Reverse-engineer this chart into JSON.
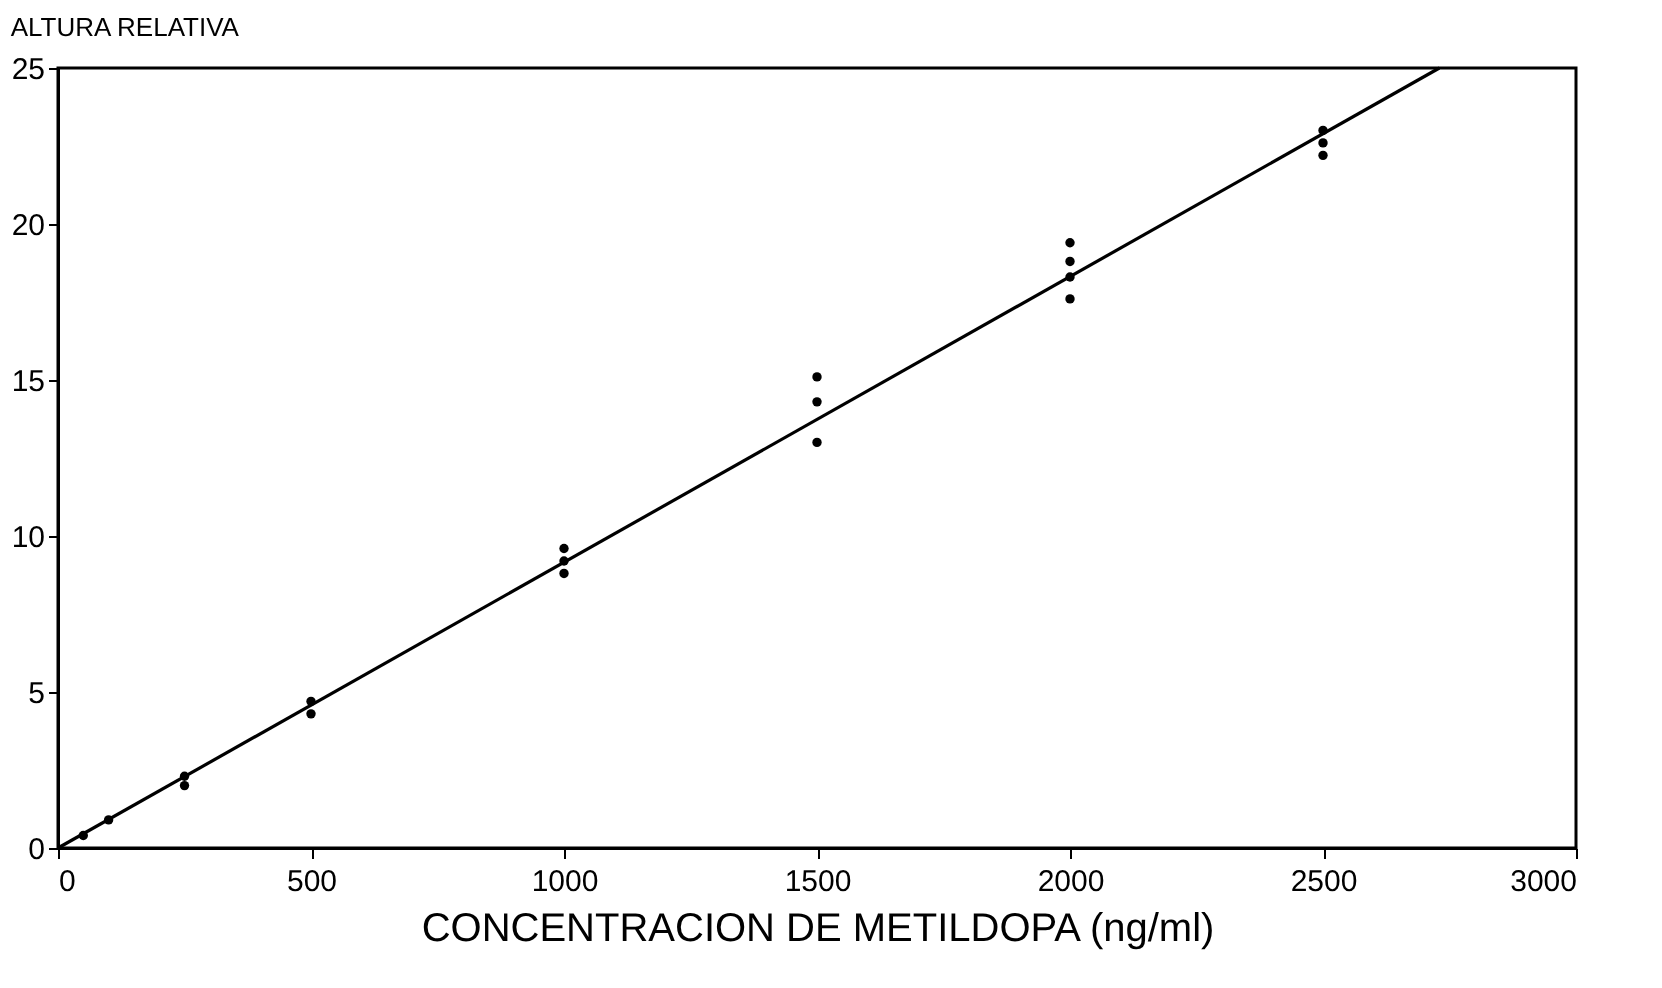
{
  "chart_data": {
    "type": "scatter",
    "ylabel": "ALTURA RELATIVA",
    "xlabel": "CONCENTRACION DE METILDOPA (ng/ml)",
    "xlim": [
      0,
      3000
    ],
    "xticks": [
      0,
      500,
      1000,
      1500,
      2000,
      2500,
      3000
    ],
    "ylim": [
      0,
      25
    ],
    "yticks": [
      0,
      5,
      10,
      15,
      20,
      25
    ],
    "grid": false,
    "series": [
      {
        "marker": "circle",
        "color": "#000000",
        "x": [
          50,
          100,
          250,
          250,
          500,
          500,
          1000,
          1000,
          1000,
          1500,
          1500,
          1500,
          2000,
          2000,
          2000,
          2000,
          2500,
          2500,
          2500
        ],
        "values": [
          0.4,
          0.9,
          2.3,
          2.0,
          4.3,
          4.7,
          9.6,
          9.2,
          8.8,
          15.1,
          14.3,
          13.0,
          19.4,
          18.8,
          18.3,
          17.6,
          23.0,
          22.6,
          22.2
        ]
      },
      {
        "type": "line",
        "marker": "none",
        "color": "#000000",
        "x": [
          0,
          2730
        ],
        "values": [
          0,
          25
        ]
      }
    ]
  }
}
